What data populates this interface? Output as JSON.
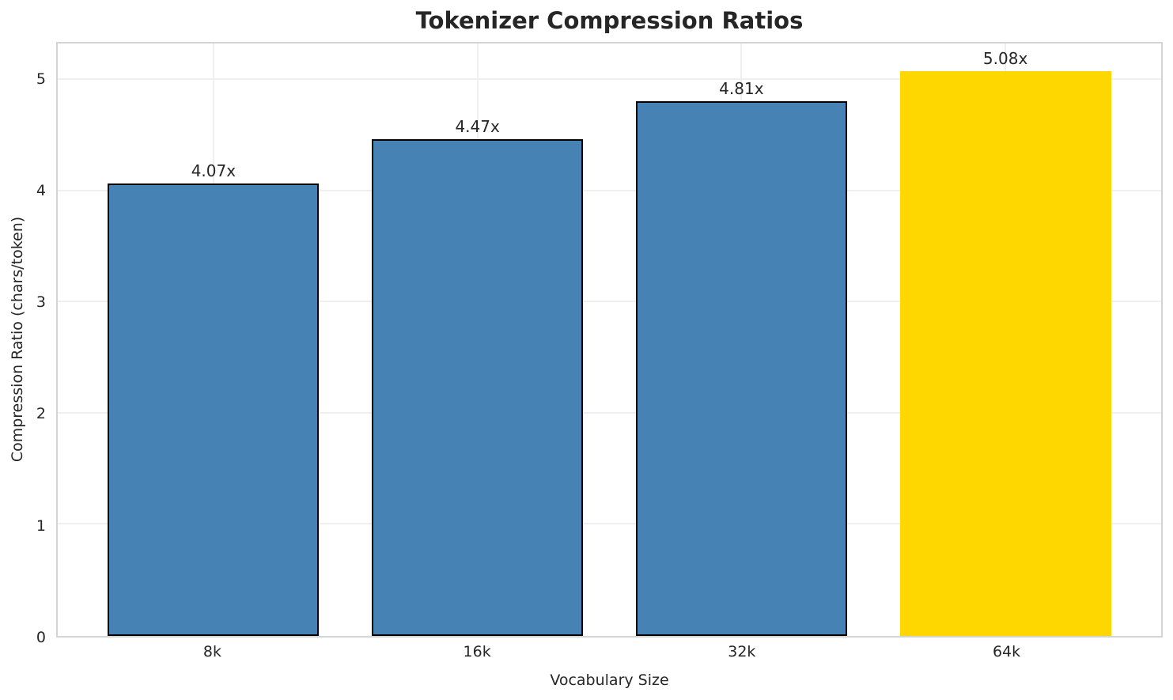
{
  "figure": {
    "background": "#ffffff"
  },
  "chart_data": {
    "type": "bar",
    "title": "Tokenizer Compression Ratios",
    "xlabel": "Vocabulary Size",
    "ylabel": "Compression Ratio (chars/token)",
    "categories": [
      "8k",
      "16k",
      "32k",
      "64k"
    ],
    "values": [
      4.07,
      4.47,
      4.81,
      5.08
    ],
    "bar_labels": [
      "4.07x",
      "4.47x",
      "4.81x",
      "5.08x"
    ],
    "bar_colors": [
      "#4682b4",
      "#4682b4",
      "#4682b4",
      "#ffd700"
    ],
    "bar_edge_colors": [
      "#000000",
      "#000000",
      "#000000",
      "none"
    ],
    "yticks": [
      0,
      1,
      2,
      3,
      4,
      5
    ],
    "ylim": [
      0,
      5.33
    ],
    "xlim": [
      -0.59,
      3.59
    ],
    "bar_width": 0.8,
    "grid": "both",
    "legend": "none",
    "colors": {
      "grid": "#efefef",
      "spine": "#d4d4d4",
      "text": "#262626",
      "title": "#262626",
      "bar_blue": "#4682b4",
      "bar_gold": "#ffd700",
      "bar_edge": "#000000"
    }
  }
}
